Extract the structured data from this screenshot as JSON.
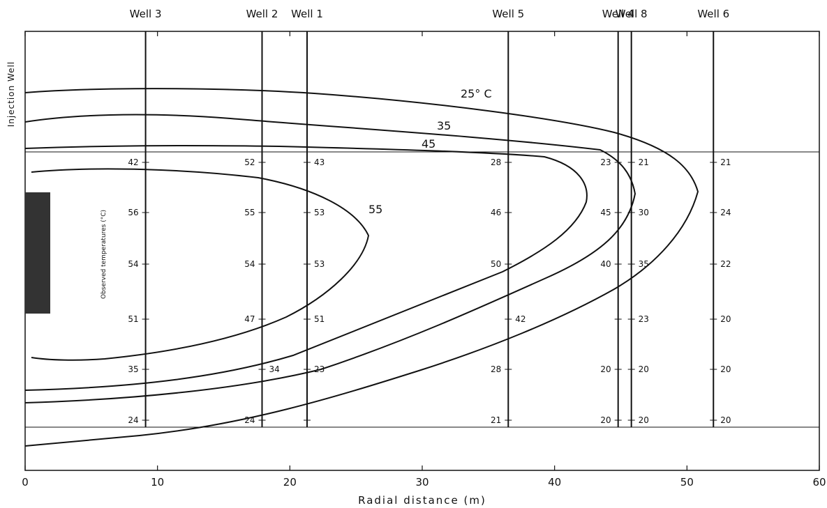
{
  "chart_data": {
    "type": "diagram",
    "xlabel": "Radial distance (m)",
    "x_ticks": [
      0,
      10,
      20,
      30,
      40,
      50,
      60
    ],
    "xlim": [
      0,
      60
    ],
    "side_label": "Injection Well",
    "observed_label": "Observed temperatures (°C)",
    "isotherm_labels": [
      {
        "id": "25",
        "text": "25° C"
      },
      {
        "id": "35",
        "text": "35"
      },
      {
        "id": "45",
        "text": "45"
      },
      {
        "id": "55",
        "text": "55"
      }
    ],
    "wells": [
      {
        "name": "Well 3",
        "x": 9.1,
        "temps": [
          "42",
          "56",
          "54",
          "51",
          "35",
          "24"
        ],
        "side": "left"
      },
      {
        "name": "Well 2",
        "x": 17.9,
        "temps": [
          "52",
          "55",
          "54",
          "47",
          "34",
          "24"
        ],
        "side": "mixed"
      },
      {
        "name": "Well 1",
        "x": 21.3,
        "temps": [
          "43",
          "53",
          "53",
          "51",
          "23",
          ""
        ],
        "side": "right"
      },
      {
        "name": "Well 5",
        "x": 36.5,
        "temps": [
          "28",
          "46",
          "50",
          "42",
          "28",
          "21"
        ],
        "side": "mixed"
      },
      {
        "name": "Well 4",
        "x": 44.8,
        "temps": [
          "23",
          "45",
          "40",
          "",
          "20",
          "20"
        ],
        "side": "left"
      },
      {
        "name": "Well 8",
        "x": 45.8,
        "temps": [
          "21",
          "30",
          "35",
          "23",
          "20",
          "20"
        ],
        "side": "right"
      },
      {
        "name": "Well 6",
        "x": 52.0,
        "temps": [
          "21",
          "24",
          "22",
          "20",
          "20",
          "20"
        ],
        "side": "right"
      }
    ]
  }
}
